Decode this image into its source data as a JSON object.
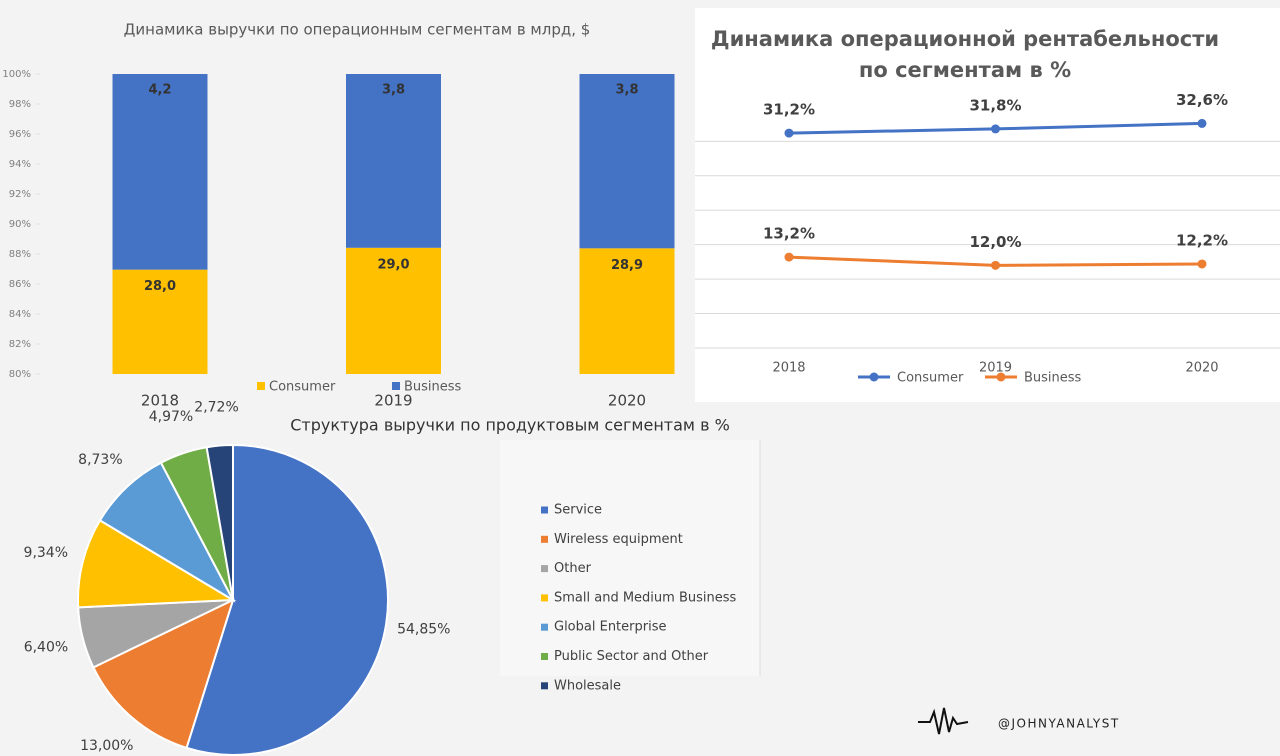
{
  "chart_data": [
    {
      "type": "stacked_percent_bar",
      "title": "Динамика выручки по операционным сегментам в млрд, $",
      "categories": [
        "2018",
        "2019",
        "2020"
      ],
      "series": [
        {
          "name": "Consumer",
          "color": "#ffc000",
          "values": [
            28.0,
            29.0,
            28.9
          ],
          "value_labels": [
            "28,0",
            "29,0",
            "28,9"
          ]
        },
        {
          "name": "Business",
          "color": "#4472c4",
          "values": [
            4.2,
            3.8,
            3.8
          ],
          "value_labels": [
            "4,2",
            "3,8",
            "3,8"
          ]
        }
      ],
      "ylim": [
        80,
        100
      ],
      "yticks": [
        {
          "value": 80,
          "label": "80%"
        },
        {
          "value": 82,
          "label": "82%"
        },
        {
          "value": 84,
          "label": "84%"
        },
        {
          "value": 86,
          "label": "86%"
        },
        {
          "value": 88,
          "label": "88%"
        },
        {
          "value": 90,
          "label": "90%"
        },
        {
          "value": 92,
          "label": "92%"
        },
        {
          "value": 94,
          "label": "94%"
        },
        {
          "value": 96,
          "label": "96%"
        },
        {
          "value": 98,
          "label": "98%"
        },
        {
          "value": 100,
          "label": "100%"
        }
      ],
      "legend": "bottom"
    },
    {
      "type": "line",
      "title": "Динамика операционной рентабельности по сегментам в %",
      "categories": [
        "2018",
        "2019",
        "2020"
      ],
      "series": [
        {
          "name": "Consumer",
          "color": "#4472c4",
          "values": [
            31.2,
            31.8,
            32.6
          ],
          "value_labels": [
            "31,2%",
            "31,8%",
            "32,6%"
          ]
        },
        {
          "name": "Business",
          "color": "#ed7d31",
          "values": [
            13.2,
            12.0,
            12.2
          ],
          "value_labels": [
            "13,2%",
            "12,0%",
            "12,2%"
          ]
        }
      ],
      "ylim": [
        0,
        36
      ],
      "yticks": [
        0,
        5,
        10,
        15,
        20,
        25,
        30
      ],
      "grid": true,
      "legend": "bottom"
    },
    {
      "type": "pie",
      "title": "Структура выручки по продуктовым сегментам в %",
      "categories": [
        "Service",
        "Wireless equipment",
        "Other",
        "Small and Medium Business",
        "Global Enterprise",
        "Public Sector and Other",
        "Wholesale"
      ],
      "values": [
        54.85,
        13.0,
        6.4,
        9.34,
        8.73,
        4.97,
        2.72
      ],
      "value_labels": [
        "54,85%",
        "13,00%",
        "6,40%",
        "9,34%",
        "8,73%",
        "4,97%",
        "2,72%"
      ],
      "colors": [
        "#4472c4",
        "#ed7d31",
        "#a5a5a5",
        "#ffc000",
        "#5b9bd5",
        "#70ad47",
        "#264478"
      ],
      "legend": "right"
    }
  ],
  "watermark": "@JOHNYANALYST"
}
